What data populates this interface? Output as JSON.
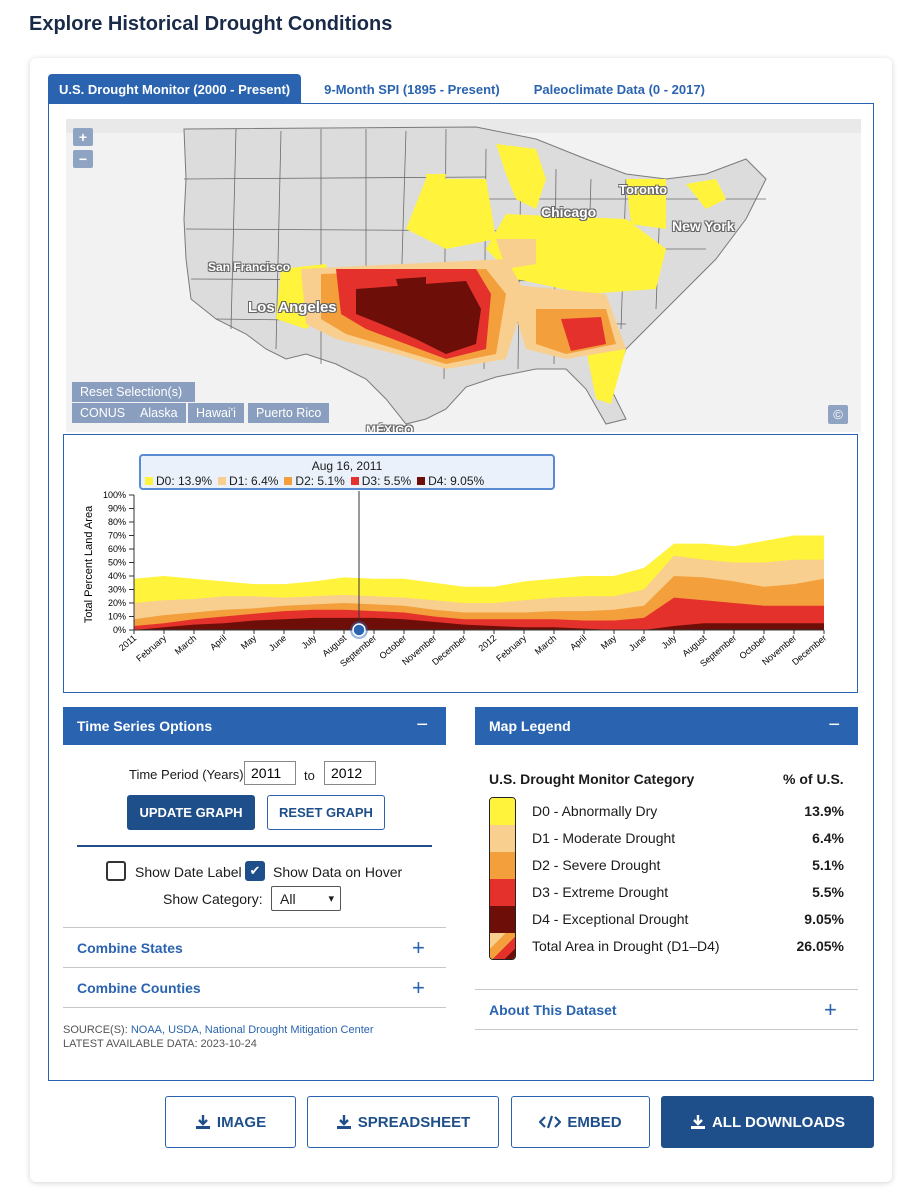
{
  "page": {
    "title": "Explore Historical Drought Conditions"
  },
  "tabs": [
    {
      "label": "U.S. Drought Monitor (2000 - Present)",
      "active": true
    },
    {
      "label": "9-Month SPI (1895 - Present)",
      "active": false
    },
    {
      "label": "Paleoclimate Data (0 - 2017)",
      "active": false
    }
  ],
  "map": {
    "zoom_in": "+",
    "zoom_out": "−",
    "reset_label": "Reset Selection(s)",
    "regions": [
      "CONUS",
      "Alaska",
      "Hawai'i",
      "Puerto Rico"
    ],
    "copyright": "©",
    "cities": [
      "Toronto",
      "Chicago",
      "New York",
      "San Francisco",
      "Los Angeles",
      "MÉXICO"
    ]
  },
  "tooltip": {
    "date": "Aug 16, 2011",
    "items": [
      {
        "label": "D0: 13.9%",
        "color": "#fff33b"
      },
      {
        "label": "D1: 6.4%",
        "color": "#f8cf8e"
      },
      {
        "label": "D2: 5.1%",
        "color": "#f39f3c"
      },
      {
        "label": "D3: 5.5%",
        "color": "#e4312b"
      },
      {
        "label": "D4: 9.05%",
        "color": "#6e0e08"
      }
    ]
  },
  "chart_data": {
    "type": "area",
    "title": "",
    "xlabel": "",
    "ylabel": "Total Percent Land Area",
    "ylim": [
      0,
      100
    ],
    "yticks": [
      "0%",
      "10%",
      "20%",
      "30%",
      "40%",
      "50%",
      "60%",
      "70%",
      "80%",
      "90%",
      "100%"
    ],
    "x_tick_labels": [
      "2011",
      "February",
      "March",
      "April",
      "May",
      "June",
      "July",
      "August",
      "September",
      "October",
      "November",
      "December",
      "2012",
      "February",
      "March",
      "April",
      "May",
      "June",
      "July",
      "August",
      "September",
      "October",
      "November",
      "December"
    ],
    "x": [
      "2011-01",
      "2011-02",
      "2011-03",
      "2011-04",
      "2011-05",
      "2011-06",
      "2011-07",
      "2011-08",
      "2011-09",
      "2011-10",
      "2011-11",
      "2011-12",
      "2012-01",
      "2012-02",
      "2012-03",
      "2012-04",
      "2012-05",
      "2012-06",
      "2012-07",
      "2012-08",
      "2012-09",
      "2012-10",
      "2012-11",
      "2012-12"
    ],
    "stacked": true,
    "cumulative_series": [
      {
        "name": "D0",
        "color": "#fff33b",
        "values": [
          38,
          40,
          38,
          36,
          34,
          34,
          36,
          39,
          38,
          38,
          35,
          32,
          32,
          36,
          38,
          40,
          40,
          46,
          64,
          64,
          62,
          66,
          70,
          70
        ]
      },
      {
        "name": "D1",
        "color": "#f8cf8e",
        "values": [
          20,
          22,
          23,
          25,
          25,
          24,
          25,
          26,
          25,
          24,
          22,
          20,
          20,
          22,
          24,
          25,
          25,
          30,
          55,
          52,
          50,
          50,
          52,
          52
        ]
      },
      {
        "name": "D2",
        "color": "#f39f3c",
        "values": [
          8,
          11,
          13,
          15,
          16,
          18,
          19,
          20,
          19,
          18,
          15,
          13,
          13,
          13,
          14,
          14,
          15,
          18,
          40,
          39,
          36,
          32,
          34,
          38
        ]
      },
      {
        "name": "D3",
        "color": "#e4312b",
        "values": [
          3,
          5,
          8,
          10,
          12,
          14,
          15,
          15,
          14,
          13,
          10,
          8,
          8,
          8,
          8,
          7,
          7,
          9,
          24,
          22,
          20,
          18,
          18,
          18
        ]
      },
      {
        "name": "D4",
        "color": "#6e0e08",
        "values": [
          0,
          2,
          4,
          5,
          7,
          8,
          9,
          9,
          9,
          8,
          6,
          4,
          3,
          2,
          2,
          1,
          0,
          0,
          3,
          5,
          5,
          5,
          5,
          5
        ]
      }
    ],
    "marker": {
      "date": "Aug 16, 2011",
      "x": "2011-08"
    }
  },
  "time_series": {
    "header": "Time Series Options",
    "collapse": "−",
    "period_label": "Time Period (Years):",
    "from_year": "2011",
    "to_label": "to",
    "to_year": "2012",
    "update_button": "UPDATE GRAPH",
    "reset_button": "RESET GRAPH",
    "show_date_label": "Show Date Label",
    "show_date_checked": false,
    "show_hover_label": "Show Data on Hover",
    "show_hover_checked": true,
    "category_label": "Show Category:",
    "category_value": "All",
    "combine_states": "Combine States",
    "combine_counties": "Combine Counties",
    "expand": "+",
    "source_prefix": "SOURCE(S):",
    "source_links": "NOAA, USDA, National Drought Mitigation Center",
    "latest": "LATEST AVAILABLE DATA: 2023-10-24"
  },
  "legend": {
    "header": "Map Legend",
    "collapse": "−",
    "col_category": "U.S. Drought Monitor Category",
    "col_pct": "% of U.S.",
    "rows": [
      {
        "label": "D0 - Abnormally Dry",
        "value": "13.9%",
        "color": "#fff33b"
      },
      {
        "label": "D1 - Moderate Drought",
        "value": "6.4%",
        "color": "#f8cf8e"
      },
      {
        "label": "D2 - Severe Drought",
        "value": "5.1%",
        "color": "#f39f3c"
      },
      {
        "label": "D3 - Extreme Drought",
        "value": "5.5%",
        "color": "#e4312b"
      },
      {
        "label": "D4 - Exceptional Drought",
        "value": "9.05%",
        "color": "#6e0e08"
      },
      {
        "label": "Total Area in Drought (D1–D4)",
        "value": "26.05%",
        "color": "mixed"
      }
    ],
    "about": "About This Dataset",
    "expand": "+"
  },
  "downloads": {
    "image": "IMAGE",
    "spreadsheet": "SPREADSHEET",
    "embed": "EMBED",
    "all": "ALL DOWNLOADS"
  }
}
